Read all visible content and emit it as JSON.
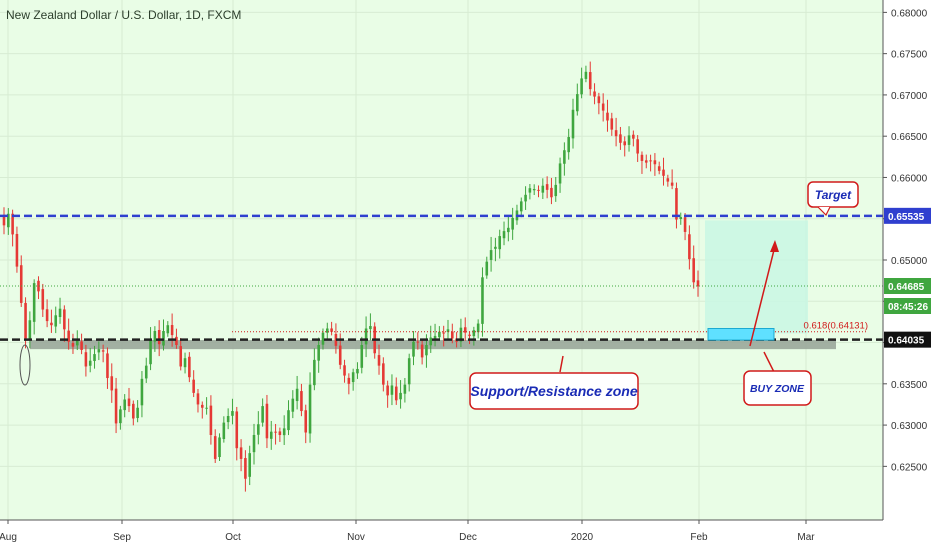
{
  "header": {
    "title": "New Zealand Dollar / U.S. Dollar, 1D, FXCM"
  },
  "colors": {
    "background": "#e9fde6",
    "up": "#3fa63f",
    "down": "#e53935",
    "resistance_line": "#2f3fcf",
    "support_line": "#222222",
    "zone": "#9aa79a",
    "target_zone": "#c9f7e3",
    "buy_zone": "#5fe0ff",
    "annotation": "#d11a1a",
    "annotation_text": "#1a2bb5"
  },
  "chart_data": {
    "type": "candlestick",
    "symbol": "NZD/USD",
    "timeframe": "1D",
    "y_axis": {
      "ticks": [
        "0.68000",
        "0.67500",
        "0.67000",
        "0.66500",
        "0.66000",
        "0.65500",
        "0.65000",
        "0.64500",
        "0.64000",
        "0.63500",
        "0.63000",
        "0.62500"
      ],
      "range": [
        0.6185,
        0.6815
      ]
    },
    "x_axis": {
      "ticks": [
        "Aug",
        "Sep",
        "Oct",
        "Nov",
        "Dec",
        "2020",
        "Feb",
        "Mar"
      ]
    },
    "price_labels": [
      {
        "value": 0.65535,
        "text": "0.65535",
        "style": "resistance"
      },
      {
        "value": 0.64685,
        "text": "0.64685",
        "style": "last"
      },
      {
        "value": 0.64685,
        "text": "08:45:26",
        "style": "countdown"
      },
      {
        "value": 0.64035,
        "text": "0.64035",
        "style": "support"
      }
    ],
    "levels": {
      "resistance": 0.65535,
      "support": 0.64035,
      "last_price": 0.64685,
      "fib": 0.64131
    },
    "annotations": {
      "target": "Target",
      "support_resistance": "Support/Resistance zone",
      "buy_zone": "BUY ZONE",
      "fib_label": "0.618(0.64131)"
    },
    "closes": [
      0.6542,
      0.6556,
      0.6531,
      0.6492,
      0.6448,
      0.6405,
      0.6427,
      0.6472,
      0.6462,
      0.644,
      0.6426,
      0.6421,
      0.6433,
      0.6441,
      0.6416,
      0.6401,
      0.6395,
      0.6403,
      0.6391,
      0.6371,
      0.6378,
      0.6386,
      0.6392,
      0.6389,
      0.6357,
      0.6342,
      0.6302,
      0.6319,
      0.6331,
      0.6323,
      0.6308,
      0.6321,
      0.6356,
      0.6372,
      0.6404,
      0.6414,
      0.6398,
      0.6414,
      0.6421,
      0.6409,
      0.6397,
      0.6371,
      0.6381,
      0.6358,
      0.6339,
      0.6325,
      0.6321,
      0.6321,
      0.6288,
      0.6259,
      0.6285,
      0.6303,
      0.6311,
      0.6317,
      0.6272,
      0.6259,
      0.6235,
      0.6266,
      0.6288,
      0.6301,
      0.6323,
      0.6284,
      0.6292,
      0.6291,
      0.6288,
      0.6296,
      0.6318,
      0.6332,
      0.6344,
      0.6317,
      0.6291,
      0.6349,
      0.6379,
      0.6397,
      0.6412,
      0.6417,
      0.6413,
      0.6396,
      0.6373,
      0.636,
      0.635,
      0.6364,
      0.6368,
      0.6397,
      0.6417,
      0.642,
      0.6387,
      0.6372,
      0.6349,
      0.6336,
      0.6348,
      0.633,
      0.6339,
      0.6349,
      0.6381,
      0.6401,
      0.64,
      0.6382,
      0.6397,
      0.6406,
      0.6408,
      0.6413,
      0.6411,
      0.6416,
      0.6405,
      0.6401,
      0.6418,
      0.6412,
      0.6408,
      0.6415,
      0.6423,
      0.6479,
      0.6498,
      0.6512,
      0.6516,
      0.6529,
      0.6535,
      0.6539,
      0.6551,
      0.656,
      0.6571,
      0.6579,
      0.6587,
      0.6586,
      0.6584,
      0.659,
      0.6585,
      0.6576,
      0.6591,
      0.6617,
      0.6633,
      0.6649,
      0.6682,
      0.6701,
      0.672,
      0.6728,
      0.6707,
      0.6698,
      0.669,
      0.6681,
      0.6669,
      0.6658,
      0.665,
      0.6642,
      0.6639,
      0.6651,
      0.6647,
      0.6629,
      0.662,
      0.6618,
      0.662,
      0.6616,
      0.6608,
      0.6602,
      0.6595,
      0.659,
      0.6549,
      0.6552,
      0.6534,
      0.6501,
      0.6473,
      0.6468
    ]
  }
}
